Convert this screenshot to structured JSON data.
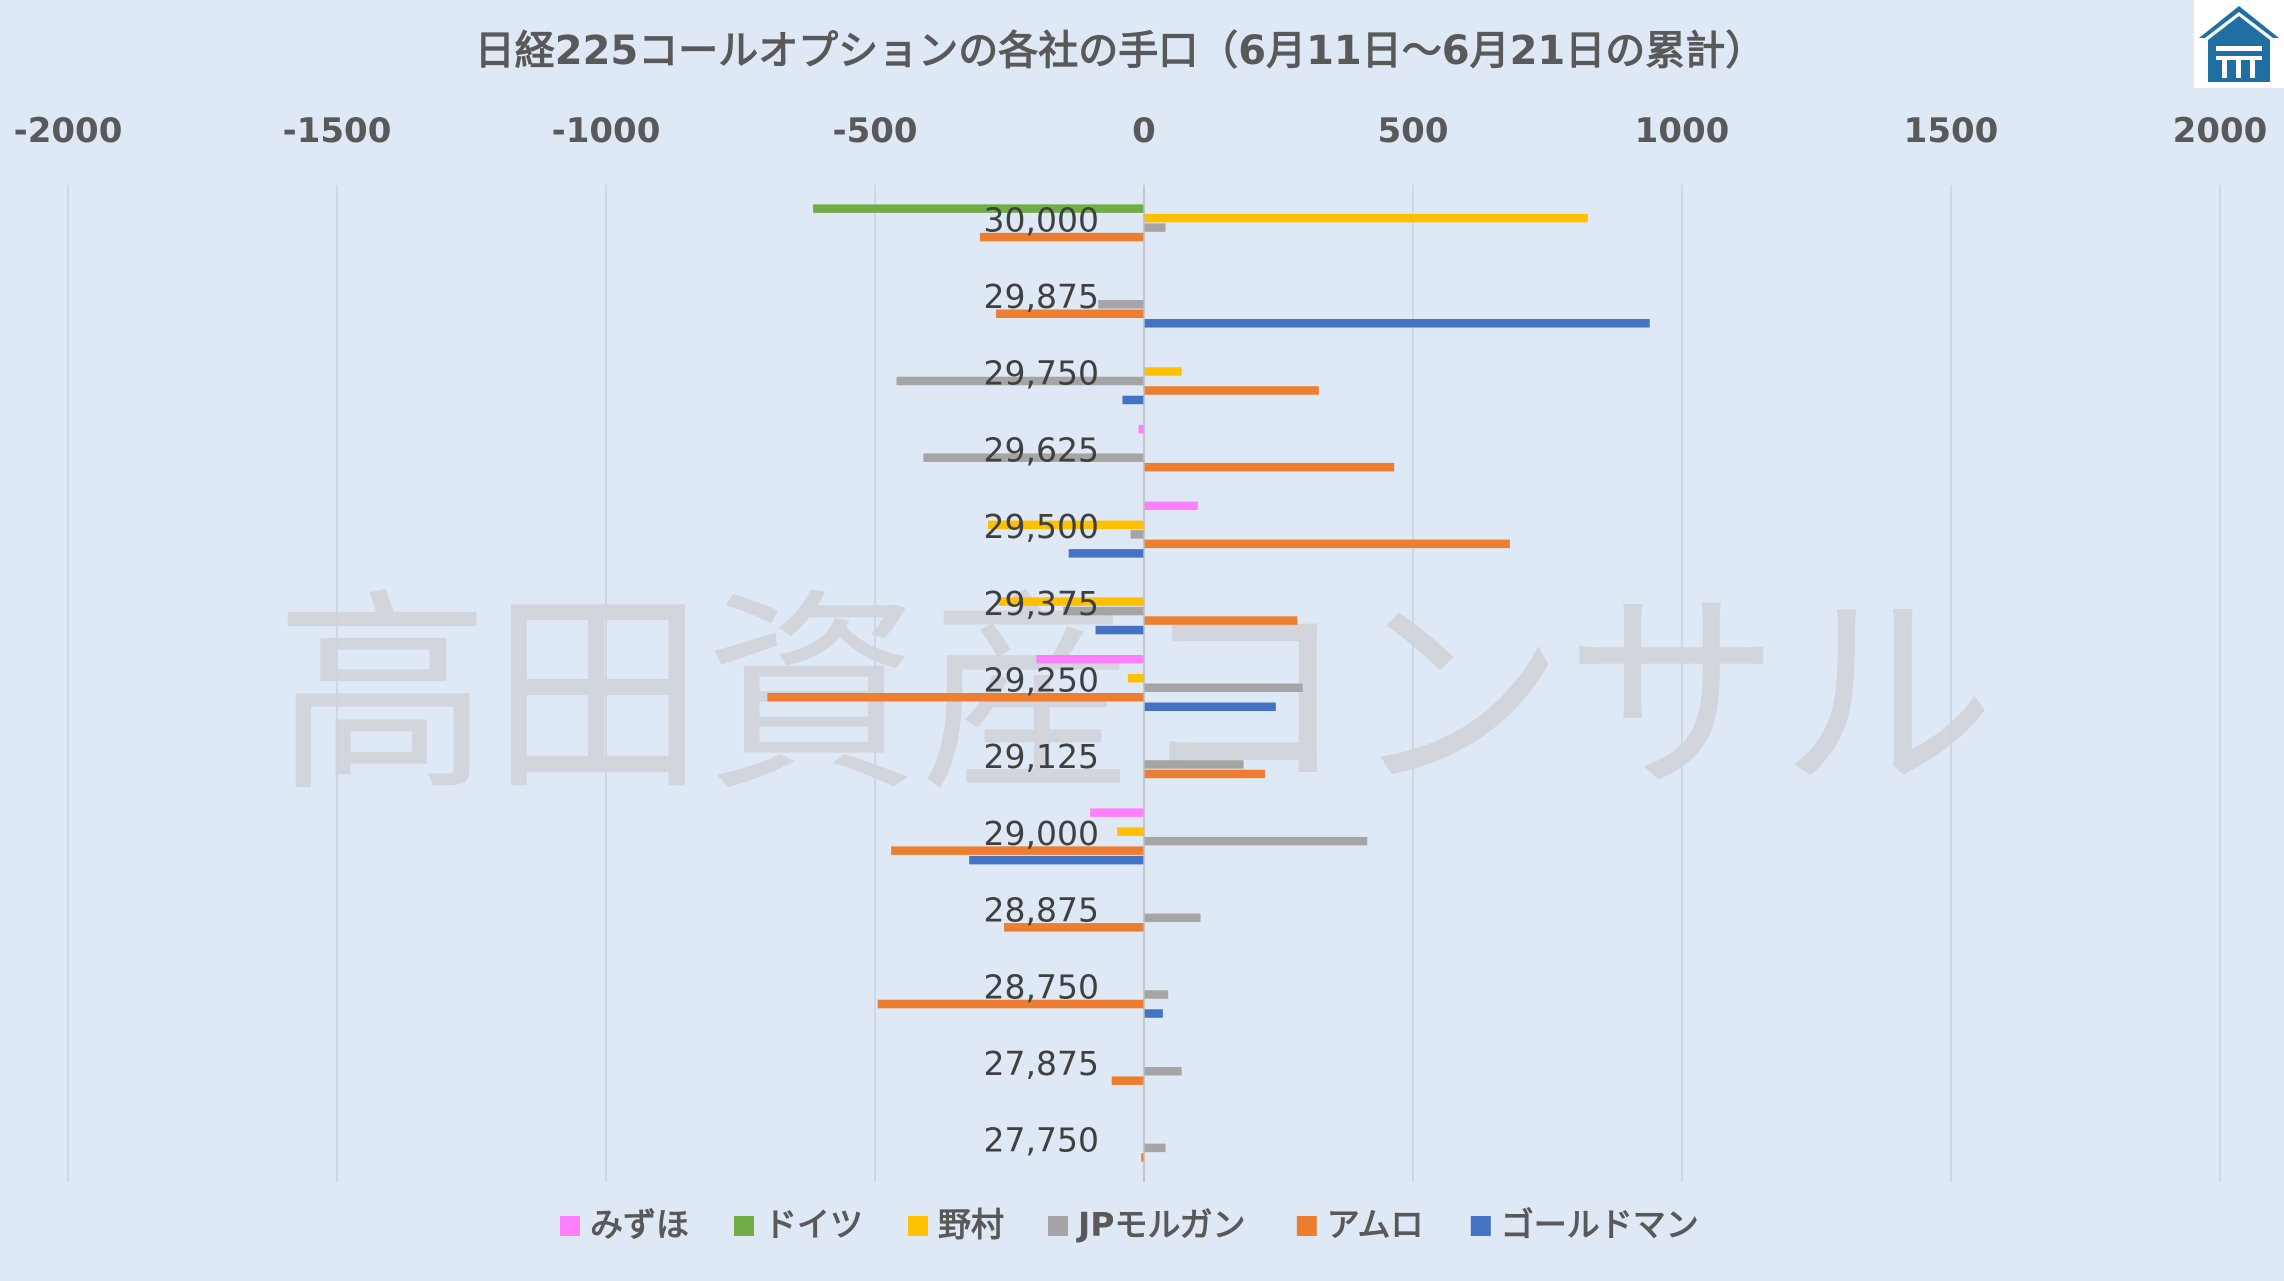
{
  "chart_data": {
    "type": "bar",
    "orientation": "horizontal",
    "title": "日経225コールオプションの各社の手口（6月11日～6月21日の累計）",
    "watermark": "高田資産コンサル",
    "xlim": [
      -2000,
      2000
    ],
    "xticks": [
      -2000,
      -1500,
      -1000,
      -500,
      0,
      500,
      1000,
      1500,
      2000
    ],
    "xtick_labels": [
      "-2000",
      "-1500",
      "-1000",
      "-500",
      "0",
      "500",
      "1000",
      "1500",
      "2000"
    ],
    "grid": true,
    "legend_position": "bottom",
    "categories": [
      "30,000",
      "29,875",
      "29,750",
      "29,625",
      "29,500",
      "29,375",
      "29,250",
      "29,125",
      "29,000",
      "28,875",
      "28,750",
      "27,875",
      "27,750"
    ],
    "series": [
      {
        "name": "みずほ",
        "color": "#ff7fff",
        "values": [
          0,
          0,
          0,
          -10,
          100,
          0,
          -200,
          0,
          -100,
          0,
          0,
          0,
          0
        ]
      },
      {
        "name": "ドイツ",
        "color": "#70ad47",
        "values": [
          -615,
          0,
          0,
          0,
          0,
          0,
          0,
          0,
          0,
          0,
          0,
          0,
          0
        ]
      },
      {
        "name": "野村",
        "color": "#ffc000",
        "values": [
          825,
          0,
          70,
          0,
          -290,
          -270,
          -30,
          0,
          -50,
          0,
          0,
          0,
          0
        ]
      },
      {
        "name": "JPモルガン",
        "color": "#a5a5a5",
        "values": [
          40,
          -85,
          -460,
          -410,
          -25,
          -150,
          295,
          185,
          415,
          105,
          45,
          70,
          40
        ]
      },
      {
        "name": "アムロ",
        "color": "#ed7d31",
        "values": [
          -305,
          -275,
          325,
          465,
          680,
          285,
          -700,
          225,
          -470,
          -260,
          -495,
          -60,
          -5
        ]
      },
      {
        "name": "ゴールドマン",
        "color": "#4472c4",
        "values": [
          0,
          940,
          -40,
          0,
          -140,
          -90,
          245,
          0,
          -325,
          0,
          35,
          0,
          0
        ]
      }
    ]
  }
}
